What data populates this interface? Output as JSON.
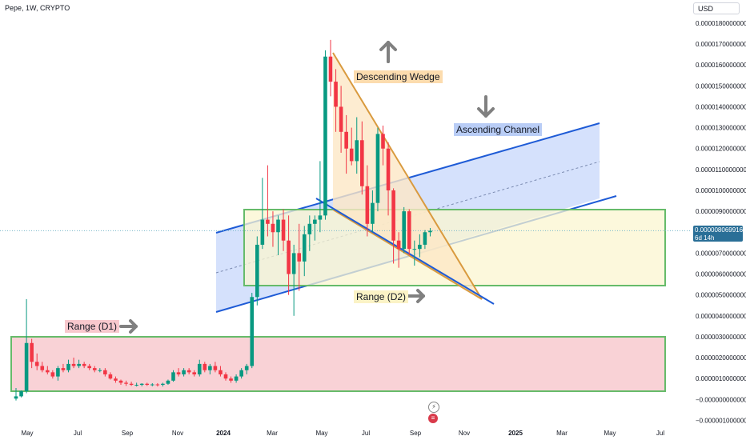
{
  "header": {
    "symbol": "Pepe, 1W, CRYPTO",
    "currency": "USD"
  },
  "price_label": {
    "value": "0.000008069916",
    "countdown": "6d 14h"
  },
  "annotations": {
    "descending_wedge": "Descending Wedge",
    "ascending_channel": "Ascending Channel",
    "range_d1": "Range (D1)",
    "range_d2": "Range (D2)"
  },
  "colors": {
    "up": "#089981",
    "down": "#f23645",
    "channel_fill": "#c7d7fb",
    "channel_line": "#1e5bd6",
    "wedge_fill": "#fde7c5",
    "wedge_line": "#d99a3e",
    "range_border": "#66bb6a",
    "range_d1_fill": "#f9d2d6",
    "range_d2_fill": "#fbf6d0",
    "arrow": "#808080"
  },
  "icons": [
    "arrow-up-icon",
    "arrow-down-icon",
    "arrow-right-icon",
    "lightning-icon",
    "flag-icon"
  ],
  "chart_data": {
    "type": "candlestick",
    "x_ticks": [
      "May",
      "Jul",
      "Sep",
      "Nov",
      "2024",
      "Mar",
      "May",
      "Jul",
      "Sep",
      "Nov",
      "2025",
      "Mar",
      "May",
      "Jul"
    ],
    "y_ticks": [
      1.8e-05,
      1.7e-05,
      1.6e-05,
      1.5e-05,
      1.4e-05,
      1.3e-05,
      1.2e-05,
      1.1e-05,
      1e-05,
      9e-06,
      7e-06,
      6e-06,
      5e-06,
      4e-06,
      3e-06,
      2e-06,
      1e-06,
      0,
      -1e-06
    ],
    "y_tick_labels": [
      "0.0000180000000",
      "0.0000170000000",
      "0.0000160000000",
      "0.0000150000000",
      "0.0000140000000",
      "0.0000130000000",
      "0.0000120000000",
      "0.0000110000000",
      "0.0000100000000",
      "0.0000090000000",
      "0.0000070000000",
      "0.0000060000000",
      "0.0000050000000",
      "0.0000040000000",
      "0.0000030000000",
      "0.0000020000000",
      "0.0000010000000",
      "−0.0000000000000",
      "−0.0000010000000"
    ],
    "ylim": [
      -1.25e-06,
      1.88e-05
    ],
    "current_price": 8.069916e-06,
    "candles": [
      {
        "o": 4e-08,
        "h": 5.5e-07,
        "l": -5e-08,
        "c": 1.5e-07
      },
      {
        "o": 1.5e-07,
        "h": 4.3e-07,
        "l": 1e-07,
        "c": 4e-07
      },
      {
        "o": 4e-07,
        "h": 4.8e-06,
        "l": 3e-07,
        "c": 2.7e-06
      },
      {
        "o": 2.7e-06,
        "h": 2.9e-06,
        "l": 1.5e-06,
        "c": 1.8e-06
      },
      {
        "o": 1.8e-06,
        "h": 2.2e-06,
        "l": 1.4e-06,
        "c": 1.6e-06
      },
      {
        "o": 1.6e-06,
        "h": 1.8e-06,
        "l": 1.3e-06,
        "c": 1.4e-06
      },
      {
        "o": 1.4e-06,
        "h": 1.6e-06,
        "l": 1.2e-06,
        "c": 1.3e-06
      },
      {
        "o": 1.3e-06,
        "h": 1.4e-06,
        "l": 1e-06,
        "c": 1.1e-06
      },
      {
        "o": 1.1e-06,
        "h": 1.6e-06,
        "l": 9e-07,
        "c": 1.5e-06
      },
      {
        "o": 1.5e-06,
        "h": 1.7e-06,
        "l": 1.3e-06,
        "c": 1.4e-06
      },
      {
        "o": 1.4e-06,
        "h": 1.9e-06,
        "l": 1.3e-06,
        "c": 1.7e-06
      },
      {
        "o": 1.7e-06,
        "h": 2e-06,
        "l": 1.5e-06,
        "c": 1.6e-06
      },
      {
        "o": 1.6e-06,
        "h": 1.9e-06,
        "l": 1.5e-06,
        "c": 1.7e-06
      },
      {
        "o": 1.7e-06,
        "h": 1.8e-06,
        "l": 1.5e-06,
        "c": 1.6e-06
      },
      {
        "o": 1.6e-06,
        "h": 1.7e-06,
        "l": 1.4e-06,
        "c": 1.5e-06
      },
      {
        "o": 1.5e-06,
        "h": 1.6e-06,
        "l": 1.3e-06,
        "c": 1.4e-06
      },
      {
        "o": 1.4e-06,
        "h": 1.5e-06,
        "l": 1.3e-06,
        "c": 1.4e-06
      },
      {
        "o": 1.4e-06,
        "h": 1.5e-06,
        "l": 1.1e-06,
        "c": 1.2e-06
      },
      {
        "o": 1.2e-06,
        "h": 1.3e-06,
        "l": 9.5e-07,
        "c": 1e-06
      },
      {
        "o": 1e-06,
        "h": 1.1e-06,
        "l": 8e-07,
        "c": 9e-07
      },
      {
        "o": 9e-07,
        "h": 9.5e-07,
        "l": 7e-07,
        "c": 8e-07
      },
      {
        "o": 8e-07,
        "h": 9e-07,
        "l": 6.5e-07,
        "c": 7.5e-07
      },
      {
        "o": 7.5e-07,
        "h": 8.5e-07,
        "l": 6.5e-07,
        "c": 7e-07
      },
      {
        "o": 7e-07,
        "h": 8e-07,
        "l": 6.2e-07,
        "c": 7e-07
      },
      {
        "o": 7e-07,
        "h": 7.8e-07,
        "l": 6.3e-07,
        "c": 7.5e-07
      },
      {
        "o": 7.5e-07,
        "h": 8e-07,
        "l": 6.5e-07,
        "c": 7e-07
      },
      {
        "o": 7e-07,
        "h": 7.8e-07,
        "l": 6.3e-07,
        "c": 7.2e-07
      },
      {
        "o": 7.2e-07,
        "h": 7.8e-07,
        "l": 6.2e-07,
        "c": 7e-07
      },
      {
        "o": 7e-07,
        "h": 8e-07,
        "l": 6.2e-07,
        "c": 7.5e-07
      },
      {
        "o": 7.5e-07,
        "h": 9.5e-07,
        "l": 7e-07,
        "c": 9e-07
      },
      {
        "o": 9e-07,
        "h": 1.4e-06,
        "l": 8.5e-07,
        "c": 1.3e-06
      },
      {
        "o": 1.3e-06,
        "h": 1.5e-06,
        "l": 1.1e-06,
        "c": 1.2e-06
      },
      {
        "o": 1.2e-06,
        "h": 1.5e-06,
        "l": 1.1e-06,
        "c": 1.4e-06
      },
      {
        "o": 1.4e-06,
        "h": 1.5e-06,
        "l": 1.2e-06,
        "c": 1.3e-06
      },
      {
        "o": 1.3e-06,
        "h": 1.4e-06,
        "l": 1.1e-06,
        "c": 1.2e-06
      },
      {
        "o": 1.2e-06,
        "h": 1.9e-06,
        "l": 1.1e-06,
        "c": 1.7e-06
      },
      {
        "o": 1.7e-06,
        "h": 1.8e-06,
        "l": 1.3e-06,
        "c": 1.4e-06
      },
      {
        "o": 1.4e-06,
        "h": 1.7e-06,
        "l": 1.2e-06,
        "c": 1.6e-06
      },
      {
        "o": 1.6e-06,
        "h": 1.8e-06,
        "l": 1.3e-06,
        "c": 1.4e-06
      },
      {
        "o": 1.4e-06,
        "h": 1.6e-06,
        "l": 1.1e-06,
        "c": 1.2e-06
      },
      {
        "o": 1.2e-06,
        "h": 1.3e-06,
        "l": 9e-07,
        "c": 1e-06
      },
      {
        "o": 1e-06,
        "h": 1.1e-06,
        "l": 8e-07,
        "c": 9e-07
      },
      {
        "o": 9e-07,
        "h": 1.2e-06,
        "l": 8e-07,
        "c": 1.1e-06
      },
      {
        "o": 1.1e-06,
        "h": 1.5e-06,
        "l": 1e-06,
        "c": 1.4e-06
      },
      {
        "o": 1.4e-06,
        "h": 1.7e-06,
        "l": 1.2e-06,
        "c": 1.6e-06
      },
      {
        "o": 1.6e-06,
        "h": 5.1e-06,
        "l": 1.5e-06,
        "c": 4.9e-06
      },
      {
        "o": 4.9e-06,
        "h": 7.8e-06,
        "l": 4.5e-06,
        "c": 7.4e-06
      },
      {
        "o": 7.4e-06,
        "h": 1.06e-05,
        "l": 7.2e-06,
        "c": 8.6e-06
      },
      {
        "o": 8.6e-06,
        "h": 1.12e-05,
        "l": 7.8e-06,
        "c": 8.4e-06
      },
      {
        "o": 8.4e-06,
        "h": 9e-06,
        "l": 7.3e-06,
        "c": 8e-06
      },
      {
        "o": 8e-06,
        "h": 8.8e-06,
        "l": 6.9e-06,
        "c": 8.6e-06
      },
      {
        "o": 8.6e-06,
        "h": 9.1e-06,
        "l": 7.1e-06,
        "c": 7.6e-06
      },
      {
        "o": 7.6e-06,
        "h": 8.8e-06,
        "l": 5e-06,
        "c": 6e-06
      },
      {
        "o": 6e-06,
        "h": 7.4e-06,
        "l": 4e-06,
        "c": 7e-06
      },
      {
        "o": 7e-06,
        "h": 8.4e-06,
        "l": 5.2e-06,
        "c": 6.6e-06
      },
      {
        "o": 6.6e-06,
        "h": 8.3e-06,
        "l": 5.9e-06,
        "c": 7.9e-06
      },
      {
        "o": 7.9e-06,
        "h": 8.8e-06,
        "l": 7.1e-06,
        "c": 8.4e-06
      },
      {
        "o": 8.4e-06,
        "h": 8.8e-06,
        "l": 7.6e-06,
        "c": 8.6e-06
      },
      {
        "o": 8.6e-06,
        "h": 1.14e-05,
        "l": 8e-06,
        "c": 8.8e-06
      },
      {
        "o": 8.8e-06,
        "h": 1.67e-05,
        "l": 8.6e-06,
        "c": 1.64e-05
      },
      {
        "o": 1.64e-05,
        "h": 1.72e-05,
        "l": 1.45e-05,
        "c": 1.52e-05
      },
      {
        "o": 1.52e-05,
        "h": 1.58e-05,
        "l": 1.28e-05,
        "c": 1.4e-05
      },
      {
        "o": 1.4e-05,
        "h": 1.5e-05,
        "l": 1.18e-05,
        "c": 1.28e-05
      },
      {
        "o": 1.28e-05,
        "h": 1.36e-05,
        "l": 1.08e-05,
        "c": 1.2e-05
      },
      {
        "o": 1.2e-05,
        "h": 1.3e-05,
        "l": 1.12e-05,
        "c": 1.14e-05
      },
      {
        "o": 1.14e-05,
        "h": 1.35e-05,
        "l": 1.08e-05,
        "c": 1.24e-05
      },
      {
        "o": 1.24e-05,
        "h": 1.33e-05,
        "l": 9.8e-06,
        "c": 1.02e-05
      },
      {
        "o": 1.02e-05,
        "h": 1.12e-05,
        "l": 7.8e-06,
        "c": 8.4e-06
      },
      {
        "o": 8.4e-06,
        "h": 1e-05,
        "l": 8e-06,
        "c": 9.4e-06
      },
      {
        "o": 9.4e-06,
        "h": 1.3e-05,
        "l": 9e-06,
        "c": 1.27e-05
      },
      {
        "o": 1.27e-05,
        "h": 1.31e-05,
        "l": 1.12e-05,
        "c": 1.2e-05
      },
      {
        "o": 1.2e-05,
        "h": 1.23e-05,
        "l": 8.8e-06,
        "c": 1e-05
      },
      {
        "o": 1e-05,
        "h": 1.01e-05,
        "l": 6.5e-06,
        "c": 7.6e-06
      },
      {
        "o": 7.6e-06,
        "h": 8e-06,
        "l": 6.3e-06,
        "c": 7.2e-06
      },
      {
        "o": 7.2e-06,
        "h": 9.2e-06,
        "l": 7e-06,
        "c": 9e-06
      },
      {
        "o": 9e-06,
        "h": 9.1e-06,
        "l": 6.9e-06,
        "c": 7.2e-06
      },
      {
        "o": 7.2e-06,
        "h": 7.6e-06,
        "l": 6.4e-06,
        "c": 7.2e-06
      },
      {
        "o": 7.2e-06,
        "h": 7.9e-06,
        "l": 6.8e-06,
        "c": 7.4e-06
      },
      {
        "o": 7.4e-06,
        "h": 8.1e-06,
        "l": 7.2e-06,
        "c": 8e-06
      },
      {
        "o": 8e-06,
        "h": 8.2e-06,
        "l": 7.8e-06,
        "c": 8.07e-06
      }
    ]
  }
}
